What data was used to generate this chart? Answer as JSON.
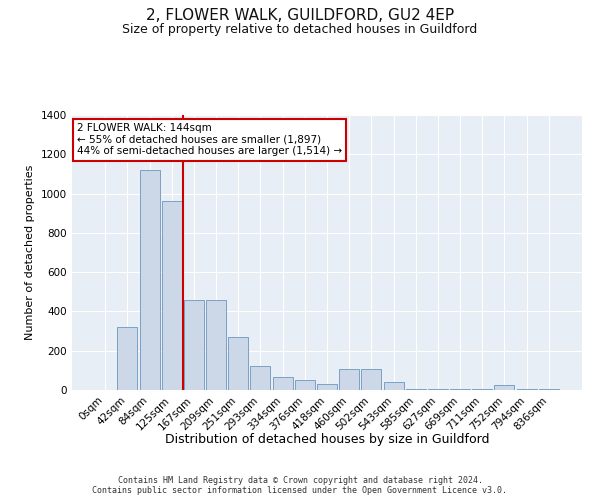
{
  "title": "2, FLOWER WALK, GUILDFORD, GU2 4EP",
  "subtitle": "Size of property relative to detached houses in Guildford",
  "xlabel": "Distribution of detached houses by size in Guildford",
  "ylabel": "Number of detached properties",
  "bin_labels": [
    "0sqm",
    "42sqm",
    "84sqm",
    "125sqm",
    "167sqm",
    "209sqm",
    "251sqm",
    "293sqm",
    "334sqm",
    "376sqm",
    "418sqm",
    "460sqm",
    "502sqm",
    "543sqm",
    "585sqm",
    "627sqm",
    "669sqm",
    "711sqm",
    "752sqm",
    "794sqm",
    "836sqm"
  ],
  "bar_heights": [
    2,
    320,
    1120,
    960,
    460,
    460,
    270,
    120,
    65,
    50,
    30,
    105,
    105,
    40,
    5,
    3,
    3,
    3,
    25,
    3,
    3
  ],
  "bar_color": "#ccd8e8",
  "bar_edge_color": "#7aa0c4",
  "red_line_x": 3.5,
  "annotation_text": "2 FLOWER WALK: 144sqm\n← 55% of detached houses are smaller (1,897)\n44% of semi-detached houses are larger (1,514) →",
  "annotation_box_color": "#ffffff",
  "annotation_box_edge": "#cc0000",
  "ylim": [
    0,
    1400
  ],
  "yticks": [
    0,
    200,
    400,
    600,
    800,
    1000,
    1200,
    1400
  ],
  "footer_text": "Contains HM Land Registry data © Crown copyright and database right 2024.\nContains public sector information licensed under the Open Government Licence v3.0.",
  "plot_bg_color": "#e8eef5",
  "title_fontsize": 11,
  "subtitle_fontsize": 9,
  "ylabel_fontsize": 8,
  "xlabel_fontsize": 9,
  "tick_fontsize": 7.5,
  "footer_fontsize": 6,
  "annotation_fontsize": 7.5
}
